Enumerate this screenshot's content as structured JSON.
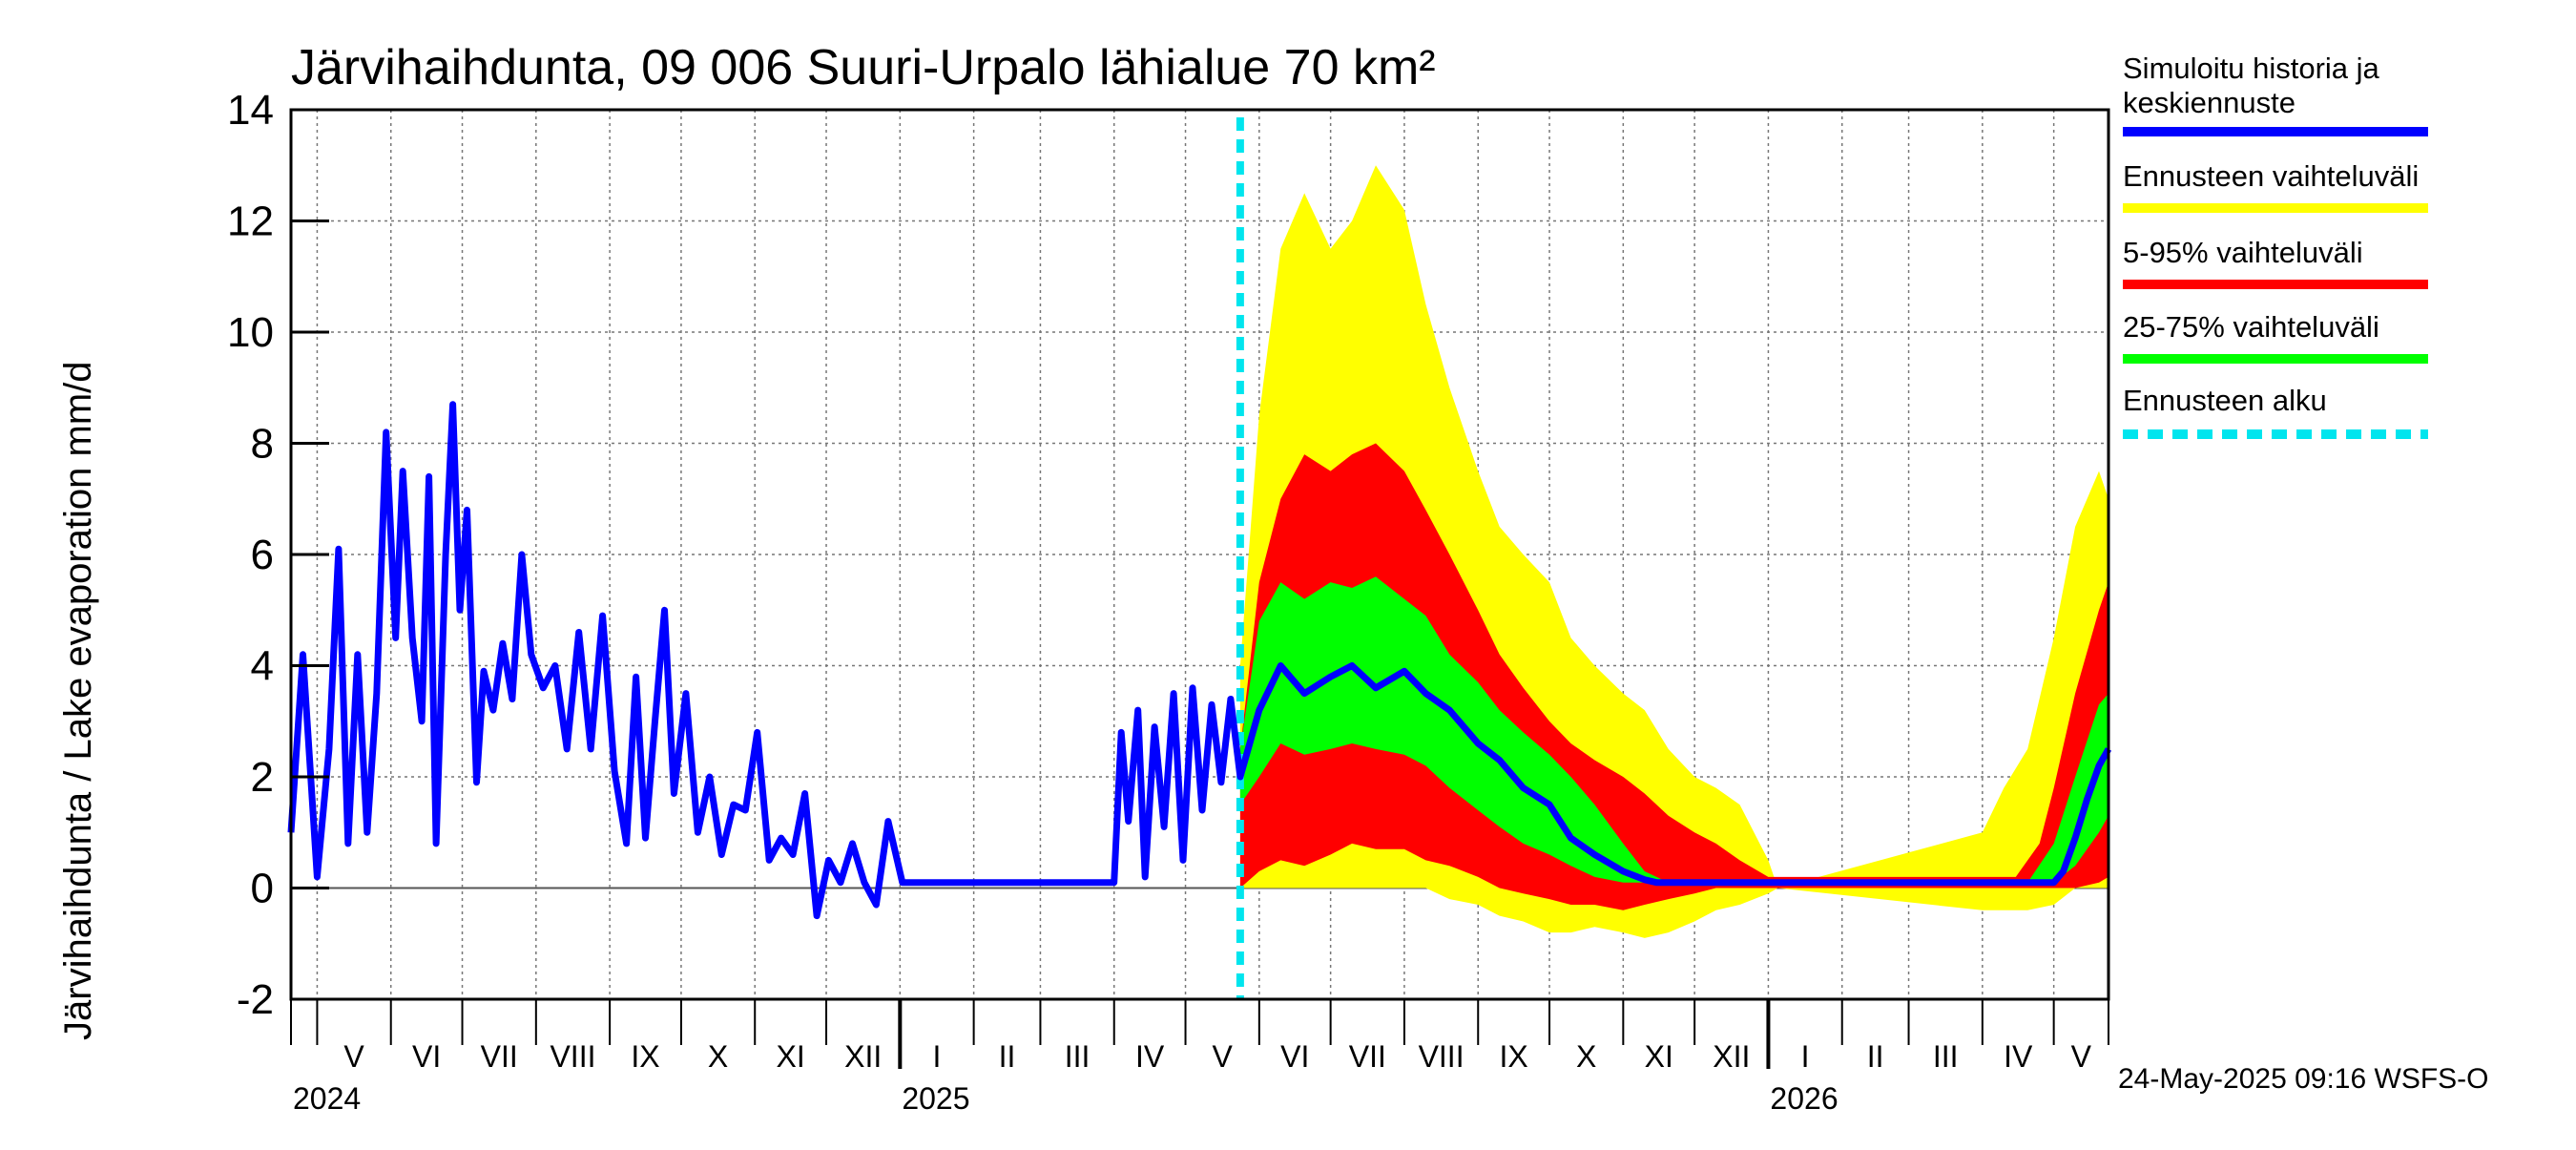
{
  "chart_data": {
    "type": "area",
    "title": "Järvihaihdunta, 09 006 Suuri-Urpalo lähialue 70 km²",
    "xlabel": "",
    "ylabel": "Järvihaihdunta / Lake evaporation   mm/d",
    "ylim": [
      -2,
      14
    ],
    "xlim": [
      "2024-04-20",
      "2026-05-24"
    ],
    "yticks": [
      -2,
      0,
      2,
      4,
      6,
      8,
      10,
      12,
      14
    ],
    "grid": true,
    "legend_position": "right",
    "forecast_start": "2025-05-24",
    "months": [
      {
        "label": "V",
        "start": "2024-05-01"
      },
      {
        "label": "VI",
        "start": "2024-06-01"
      },
      {
        "label": "VII",
        "start": "2024-07-01"
      },
      {
        "label": "VIII",
        "start": "2024-08-01"
      },
      {
        "label": "IX",
        "start": "2024-09-01"
      },
      {
        "label": "X",
        "start": "2024-10-01"
      },
      {
        "label": "XI",
        "start": "2024-11-01"
      },
      {
        "label": "XII",
        "start": "2024-12-01"
      },
      {
        "label": "I",
        "start": "2025-01-01"
      },
      {
        "label": "II",
        "start": "2025-02-01"
      },
      {
        "label": "III",
        "start": "2025-03-01"
      },
      {
        "label": "IV",
        "start": "2025-04-01"
      },
      {
        "label": "V",
        "start": "2025-05-01"
      },
      {
        "label": "VI",
        "start": "2025-06-01"
      },
      {
        "label": "VII",
        "start": "2025-07-01"
      },
      {
        "label": "VIII",
        "start": "2025-08-01"
      },
      {
        "label": "IX",
        "start": "2025-09-01"
      },
      {
        "label": "X",
        "start": "2025-10-01"
      },
      {
        "label": "XI",
        "start": "2025-11-01"
      },
      {
        "label": "XII",
        "start": "2025-12-01"
      },
      {
        "label": "I",
        "start": "2026-01-01"
      },
      {
        "label": "II",
        "start": "2026-02-01"
      },
      {
        "label": "III",
        "start": "2026-03-01"
      },
      {
        "label": "IV",
        "start": "2026-04-01"
      },
      {
        "label": "V",
        "start": "2026-05-01"
      }
    ],
    "years": [
      {
        "label": "2024",
        "date": "2024-04-20"
      },
      {
        "label": "2025",
        "date": "2025-01-01"
      },
      {
        "label": "2026",
        "date": "2026-01-01"
      }
    ],
    "series": [
      {
        "name": "Simuloitu historia ja keskiennuste",
        "color": "#0000ff",
        "x": [
          "2024-04-20",
          "2024-04-25",
          "2024-05-01",
          "2024-05-06",
          "2024-05-10",
          "2024-05-14",
          "2024-05-18",
          "2024-05-22",
          "2024-05-26",
          "2024-05-30",
          "2024-06-03",
          "2024-06-06",
          "2024-06-10",
          "2024-06-14",
          "2024-06-17",
          "2024-06-20",
          "2024-06-24",
          "2024-06-27",
          "2024-06-30",
          "2024-07-03",
          "2024-07-07",
          "2024-07-10",
          "2024-07-14",
          "2024-07-18",
          "2024-07-22",
          "2024-07-26",
          "2024-07-30",
          "2024-08-04",
          "2024-08-09",
          "2024-08-14",
          "2024-08-19",
          "2024-08-24",
          "2024-08-29",
          "2024-09-03",
          "2024-09-08",
          "2024-09-12",
          "2024-09-16",
          "2024-09-20",
          "2024-09-24",
          "2024-09-28",
          "2024-10-03",
          "2024-10-08",
          "2024-10-13",
          "2024-10-18",
          "2024-10-23",
          "2024-10-28",
          "2024-11-02",
          "2024-11-07",
          "2024-11-12",
          "2024-11-17",
          "2024-11-22",
          "2024-11-27",
          "2024-12-02",
          "2024-12-07",
          "2024-12-12",
          "2024-12-17",
          "2024-12-22",
          "2024-12-27",
          "2025-01-02",
          "2025-01-15",
          "2025-02-15",
          "2025-03-15",
          "2025-04-01",
          "2025-04-04",
          "2025-04-07",
          "2025-04-11",
          "2025-04-14",
          "2025-04-18",
          "2025-04-22",
          "2025-04-26",
          "2025-04-30",
          "2025-05-04",
          "2025-05-08",
          "2025-05-12",
          "2025-05-16",
          "2025-05-20",
          "2025-05-24",
          "2025-06-01",
          "2025-06-10",
          "2025-06-20",
          "2025-07-01",
          "2025-07-10",
          "2025-07-20",
          "2025-08-01",
          "2025-08-10",
          "2025-08-20",
          "2025-09-01",
          "2025-09-10",
          "2025-09-20",
          "2025-10-01",
          "2025-10-10",
          "2025-10-20",
          "2025-11-01",
          "2025-11-10",
          "2025-11-15",
          "2025-12-01",
          "2026-01-01",
          "2026-02-01",
          "2026-03-01",
          "2026-04-01",
          "2026-04-25",
          "2026-05-01",
          "2026-05-05",
          "2026-05-10",
          "2026-05-15",
          "2026-05-20",
          "2026-05-24"
        ],
        "values": [
          1.0,
          4.2,
          0.2,
          2.5,
          6.1,
          0.8,
          4.2,
          1.0,
          3.5,
          8.2,
          4.5,
          7.5,
          4.5,
          3.0,
          7.4,
          0.8,
          6.0,
          8.7,
          5.0,
          6.8,
          1.9,
          3.9,
          3.2,
          4.4,
          3.4,
          6.0,
          4.2,
          3.6,
          4.0,
          2.5,
          4.6,
          2.5,
          4.9,
          2.1,
          0.8,
          3.8,
          0.9,
          3.0,
          5.0,
          1.7,
          3.5,
          1.0,
          2.0,
          0.6,
          1.5,
          1.4,
          2.8,
          0.5,
          0.9,
          0.6,
          1.7,
          -0.5,
          0.5,
          0.1,
          0.8,
          0.1,
          -0.3,
          1.2,
          0.1,
          0.1,
          0.1,
          0.1,
          0.1,
          2.8,
          1.2,
          3.2,
          0.2,
          2.9,
          1.1,
          3.5,
          0.5,
          3.6,
          1.4,
          3.3,
          1.9,
          3.4,
          2.0,
          3.2,
          4.0,
          3.5,
          3.8,
          4.0,
          3.6,
          3.9,
          3.5,
          3.2,
          2.6,
          2.3,
          1.8,
          1.5,
          0.9,
          0.6,
          0.3,
          0.15,
          0.1,
          0.1,
          0.1,
          0.1,
          0.1,
          0.1,
          0.1,
          0.1,
          0.3,
          0.9,
          1.6,
          2.2,
          2.5
        ]
      },
      {
        "name": "Ennusteen vaihteluväli",
        "color": "#ffff00",
        "x": [
          "2025-05-24",
          "2025-06-01",
          "2025-06-10",
          "2025-06-20",
          "2025-07-01",
          "2025-07-10",
          "2025-07-20",
          "2025-08-01",
          "2025-08-10",
          "2025-08-20",
          "2025-09-01",
          "2025-09-10",
          "2025-09-20",
          "2025-10-01",
          "2025-10-10",
          "2025-10-20",
          "2025-11-01",
          "2025-11-10",
          "2025-11-20",
          "2025-12-01",
          "2025-12-10",
          "2025-12-20",
          "2026-01-01",
          "2026-01-05",
          "2026-04-01",
          "2026-04-10",
          "2026-04-20",
          "2026-05-01",
          "2026-05-10",
          "2026-05-20",
          "2026-05-24"
        ],
        "low": [
          0.0,
          0.0,
          0.0,
          0.0,
          0.0,
          0.0,
          0.0,
          0.0,
          0.0,
          -0.2,
          -0.3,
          -0.5,
          -0.6,
          -0.8,
          -0.8,
          -0.7,
          -0.8,
          -0.9,
          -0.8,
          -0.6,
          -0.4,
          -0.3,
          -0.1,
          0.0,
          -0.4,
          -0.4,
          -0.4,
          -0.3,
          0.0,
          0.0,
          0.0
        ],
        "high": [
          4.0,
          8.5,
          11.5,
          12.5,
          11.5,
          12.0,
          13.0,
          12.2,
          10.5,
          9.0,
          7.5,
          6.5,
          6.0,
          5.5,
          4.5,
          4.0,
          3.5,
          3.2,
          2.5,
          2.0,
          1.8,
          1.5,
          0.5,
          0.0,
          1.0,
          1.8,
          2.5,
          4.5,
          6.5,
          7.5,
          7.0
        ]
      },
      {
        "name": "5-95% vaihteluväli",
        "color": "#ff0000",
        "x": [
          "2025-05-24",
          "2025-06-01",
          "2025-06-10",
          "2025-06-20",
          "2025-07-01",
          "2025-07-10",
          "2025-07-20",
          "2025-08-01",
          "2025-08-10",
          "2025-08-20",
          "2025-09-01",
          "2025-09-10",
          "2025-09-20",
          "2025-10-01",
          "2025-10-10",
          "2025-10-20",
          "2025-11-01",
          "2025-11-10",
          "2025-11-20",
          "2025-12-01",
          "2025-12-10",
          "2025-12-20",
          "2026-01-01",
          "2026-04-15",
          "2026-04-25",
          "2026-05-01",
          "2026-05-10",
          "2026-05-20",
          "2026-05-24"
        ],
        "low": [
          0.0,
          0.3,
          0.5,
          0.4,
          0.6,
          0.8,
          0.7,
          0.7,
          0.5,
          0.4,
          0.2,
          0.0,
          -0.1,
          -0.2,
          -0.3,
          -0.3,
          -0.4,
          -0.3,
          -0.2,
          -0.1,
          0.0,
          0.0,
          0.0,
          0.0,
          0.0,
          0.0,
          0.0,
          0.1,
          0.2
        ],
        "high": [
          2.5,
          5.5,
          7.0,
          7.8,
          7.5,
          7.8,
          8.0,
          7.5,
          6.8,
          6.0,
          5.0,
          4.2,
          3.6,
          3.0,
          2.6,
          2.3,
          2.0,
          1.7,
          1.3,
          1.0,
          0.8,
          0.5,
          0.2,
          0.2,
          0.8,
          1.8,
          3.5,
          5.0,
          5.5
        ]
      },
      {
        "name": "25-75% vaihteluväli",
        "color": "#00ff00",
        "x": [
          "2025-05-24",
          "2025-06-01",
          "2025-06-10",
          "2025-06-20",
          "2025-07-01",
          "2025-07-10",
          "2025-07-20",
          "2025-08-01",
          "2025-08-10",
          "2025-08-20",
          "2025-09-01",
          "2025-09-10",
          "2025-09-20",
          "2025-10-01",
          "2025-10-10",
          "2025-10-20",
          "2025-11-01",
          "2025-11-10",
          "2025-11-20",
          "2026-04-20",
          "2026-05-01",
          "2026-05-10",
          "2026-05-20",
          "2026-05-24"
        ],
        "low": [
          1.5,
          2.0,
          2.6,
          2.4,
          2.5,
          2.6,
          2.5,
          2.4,
          2.2,
          1.8,
          1.4,
          1.1,
          0.8,
          0.6,
          0.4,
          0.2,
          0.1,
          0.1,
          0.1,
          0.1,
          0.1,
          0.4,
          1.0,
          1.3
        ],
        "high": [
          2.5,
          4.8,
          5.5,
          5.2,
          5.5,
          5.4,
          5.6,
          5.2,
          4.9,
          4.2,
          3.7,
          3.2,
          2.8,
          2.4,
          2.0,
          1.5,
          0.8,
          0.3,
          0.1,
          0.1,
          0.8,
          2.0,
          3.3,
          3.5
        ]
      },
      {
        "name": "Ennusteen alku",
        "color": "#00e5ee"
      }
    ]
  },
  "legend": [
    {
      "label_lines": [
        "Simuloitu historia ja",
        "keskiennuste"
      ],
      "color": "#0000ff",
      "style": "solid"
    },
    {
      "label_lines": [
        "Ennusteen vaihteluväli"
      ],
      "color": "#ffff00",
      "style": "solid"
    },
    {
      "label_lines": [
        "5-95% vaihteluväli"
      ],
      "color": "#ff0000",
      "style": "solid"
    },
    {
      "label_lines": [
        "25-75% vaihteluväli"
      ],
      "color": "#00ff00",
      "style": "solid"
    },
    {
      "label_lines": [
        "Ennusteen alku"
      ],
      "color": "#00e5ee",
      "style": "dashed"
    }
  ],
  "footer": "24-May-2025 09:16 WSFS-O"
}
